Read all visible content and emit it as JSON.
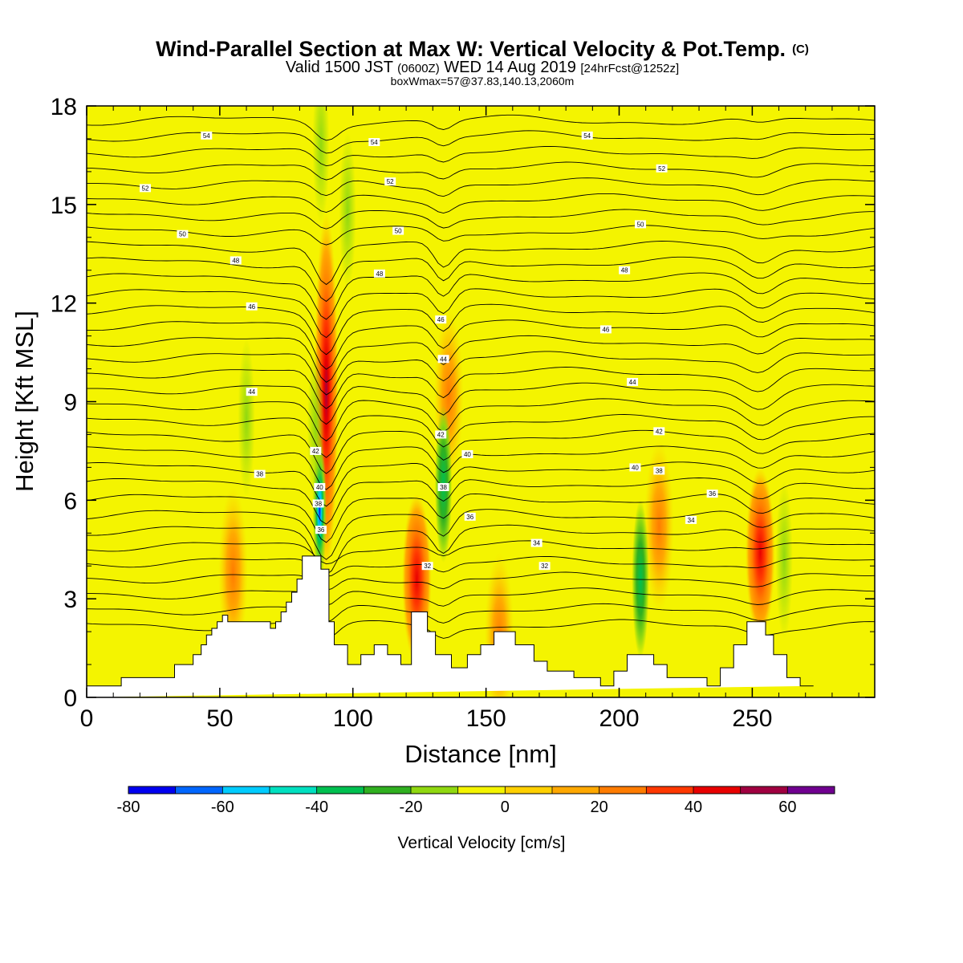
{
  "chart_data": {
    "type": "heatmap",
    "title": "Wind-Parallel Section at Max W: Vertical Velocity & Pot.Temp.",
    "title_mark": "(C)",
    "subtitle_parts": [
      "Valid 1500 JST",
      "(0600Z)",
      "WED 14 Aug 2019",
      "[24hrFcst@1252z]"
    ],
    "subtitle2": "boxWmax=57@37.83,140.13,2060m",
    "xlabel": "Distance [nm]",
    "ylabel": "Height [Kft MSL]",
    "xlim": [
      0,
      296
    ],
    "ylim": [
      0,
      18
    ],
    "x_ticks": [
      "0",
      "50",
      "100",
      "150",
      "200",
      "250"
    ],
    "x_tick_values": [
      0,
      50,
      100,
      150,
      200,
      250
    ],
    "y_ticks": [
      "0",
      "3",
      "6",
      "9",
      "12",
      "15",
      "18"
    ],
    "y_tick_values": [
      0,
      3,
      6,
      9,
      12,
      15,
      18
    ],
    "colorbar": {
      "label": "Vertical Velocity [cm/s]",
      "range": [
        -80,
        70
      ],
      "tick_labels": [
        "-80",
        "-60",
        "-40",
        "-20",
        "0",
        "20",
        "40",
        "60"
      ],
      "tick_values": [
        -80,
        -60,
        -40,
        -20,
        0,
        20,
        40,
        60
      ],
      "colors": [
        "#0000f0",
        "#0066ff",
        "#00ccff",
        "#00e0c0",
        "#00c050",
        "#30b020",
        "#90d810",
        "#f4f400",
        "#ffd000",
        "#ffa800",
        "#ff7c00",
        "#ff3800",
        "#e80000",
        "#a00040",
        "#700090"
      ]
    },
    "background_color": "#f4f400",
    "terrain_color": "#ffffff",
    "terrain_profile": {
      "x": [
        0,
        13,
        13,
        33,
        33,
        40,
        40,
        43,
        43,
        45,
        45,
        47,
        47,
        49,
        49,
        51,
        51,
        53,
        53,
        69,
        69,
        71,
        71,
        73,
        73,
        75,
        75,
        77,
        77,
        79,
        79,
        81,
        81,
        88,
        88,
        91,
        91,
        93,
        93,
        98,
        98,
        103,
        103,
        108,
        108,
        113,
        113,
        118,
        118,
        122,
        122,
        128,
        128,
        131,
        131,
        137,
        137,
        143,
        143,
        148,
        148,
        153,
        153,
        161,
        161,
        168,
        168,
        173,
        173,
        183,
        183,
        193,
        193,
        198,
        198,
        203,
        203,
        213,
        213,
        218,
        218,
        233,
        233,
        238,
        238,
        243,
        243,
        248,
        248,
        255,
        255,
        258,
        258,
        263,
        263,
        268,
        268,
        273,
        273,
        296
      ],
      "y": [
        0.35,
        0.35,
        0.6,
        0.6,
        1.0,
        1.0,
        1.3,
        1.3,
        1.6,
        1.6,
        1.9,
        1.9,
        2.1,
        2.1,
        2.3,
        2.3,
        2.5,
        2.5,
        2.3,
        2.3,
        2.1,
        2.1,
        2.3,
        2.3,
        2.6,
        2.6,
        2.9,
        2.9,
        3.2,
        3.2,
        3.6,
        3.6,
        4.3,
        4.3,
        3.9,
        3.9,
        2.3,
        2.3,
        1.6,
        1.6,
        1.0,
        1.0,
        1.3,
        1.3,
        1.6,
        1.6,
        1.3,
        1.3,
        1.0,
        1.0,
        2.6,
        2.6,
        2.0,
        2.0,
        1.3,
        1.3,
        0.9,
        0.9,
        1.3,
        1.3,
        1.6,
        1.6,
        2.0,
        2.0,
        1.6,
        1.6,
        1.1,
        1.1,
        0.8,
        0.8,
        0.6,
        0.6,
        0.35,
        0.35,
        0.8,
        0.8,
        1.3,
        1.3,
        1.0,
        1.0,
        0.6,
        0.6,
        0.35,
        0.35,
        0.9,
        0.9,
        1.6,
        1.6,
        2.3,
        2.3,
        1.9,
        1.9,
        1.3,
        1.3,
        0.6,
        0.6,
        0.35,
        0.35,
        0.35
      ]
    },
    "updraft_cores": [
      {
        "x": 90,
        "y": 9.3,
        "w": 57
      },
      {
        "x": 124,
        "y": 3.6,
        "w": 40
      },
      {
        "x": 253,
        "y": 4.4,
        "w": 45
      },
      {
        "x": 136,
        "y": 9.2,
        "w": 25
      },
      {
        "x": 215,
        "y": 5.2,
        "w": 30
      },
      {
        "x": 55,
        "y": 3.8,
        "w": 25
      },
      {
        "x": 155,
        "y": 1.8,
        "w": 25
      }
    ],
    "downdraft_cores": [
      {
        "x": 87.5,
        "y": 5.7,
        "w": -60
      },
      {
        "x": 86,
        "y": 8.2,
        "w": -20
      },
      {
        "x": 60,
        "y": 8.5,
        "w": -15
      },
      {
        "x": 134,
        "y": 6.5,
        "w": -25
      },
      {
        "x": 208,
        "y": 3.6,
        "w": -30
      },
      {
        "x": 262,
        "y": 4.2,
        "w": -20
      },
      {
        "x": 98,
        "y": 14.8,
        "w": -15
      },
      {
        "x": 88,
        "y": 16.8,
        "w": -15
      }
    ],
    "theta_contour_labels": [
      {
        "text": "54",
        "x": 45,
        "y": 17.1
      },
      {
        "text": "54",
        "x": 108,
        "y": 16.9
      },
      {
        "text": "54",
        "x": 188,
        "y": 17.1
      },
      {
        "text": "52",
        "x": 22,
        "y": 15.5
      },
      {
        "text": "52",
        "x": 114,
        "y": 15.7
      },
      {
        "text": "52",
        "x": 216,
        "y": 16.1
      },
      {
        "text": "50",
        "x": 36,
        "y": 14.1
      },
      {
        "text": "50",
        "x": 117,
        "y": 14.2
      },
      {
        "text": "50",
        "x": 208,
        "y": 14.4
      },
      {
        "text": "48",
        "x": 56,
        "y": 13.3
      },
      {
        "text": "48",
        "x": 110,
        "y": 12.9
      },
      {
        "text": "48",
        "x": 202,
        "y": 13.0
      },
      {
        "text": "46",
        "x": 62,
        "y": 11.9
      },
      {
        "text": "46",
        "x": 133,
        "y": 11.5
      },
      {
        "text": "46",
        "x": 195,
        "y": 11.2
      },
      {
        "text": "44",
        "x": 62,
        "y": 9.3
      },
      {
        "text": "44",
        "x": 134,
        "y": 10.3
      },
      {
        "text": "44",
        "x": 205,
        "y": 9.6
      },
      {
        "text": "42",
        "x": 86,
        "y": 7.5
      },
      {
        "text": "42",
        "x": 133,
        "y": 8.0
      },
      {
        "text": "42",
        "x": 215,
        "y": 8.1
      },
      {
        "text": "40",
        "x": 87.5,
        "y": 6.4
      },
      {
        "text": "40",
        "x": 143,
        "y": 7.4
      },
      {
        "text": "40",
        "x": 206,
        "y": 7.0
      },
      {
        "text": "38",
        "x": 65,
        "y": 6.8
      },
      {
        "text": "38",
        "x": 87,
        "y": 5.9
      },
      {
        "text": "38",
        "x": 134,
        "y": 6.4
      },
      {
        "text": "38",
        "x": 215,
        "y": 6.9
      },
      {
        "text": "36",
        "x": 88,
        "y": 5.1
      },
      {
        "text": "36",
        "x": 144,
        "y": 5.5
      },
      {
        "text": "36",
        "x": 235,
        "y": 6.2
      },
      {
        "text": "34",
        "x": 169,
        "y": 4.7
      },
      {
        "text": "34",
        "x": 227,
        "y": 5.4
      },
      {
        "text": "32",
        "x": 128,
        "y": 4.0
      },
      {
        "text": "32",
        "x": 172,
        "y": 4.0
      }
    ]
  }
}
